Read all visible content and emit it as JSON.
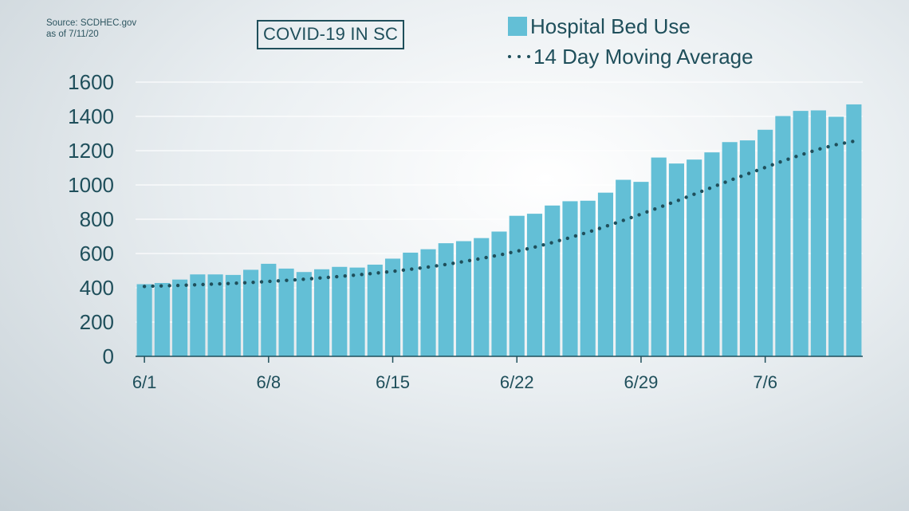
{
  "source": {
    "line1": "Source: SCDHEC.gov",
    "line2": "as of 7/11/20"
  },
  "title": "COVID-19 IN SC",
  "legend": {
    "bars_label": "Hospital Bed Use",
    "line_label": "14 Day Moving Average"
  },
  "colors": {
    "bar": "#63bfd6",
    "line": "#1f4f5b",
    "text": "#1f4f5b",
    "grid": "#ffffff"
  },
  "chart_data": {
    "type": "bar",
    "title": "COVID-19 IN SC",
    "ylim": [
      0,
      1600
    ],
    "yticks": [
      0,
      200,
      400,
      600,
      800,
      1000,
      1200,
      1400,
      1600
    ],
    "xtick_labels": [
      "6/1",
      "6/8",
      "6/15",
      "6/22",
      "6/29",
      "7/6"
    ],
    "xtick_index": [
      0,
      7,
      14,
      21,
      28,
      35
    ],
    "grid": true,
    "legend_position": "top-right",
    "x": [
      "6/1",
      "6/2",
      "6/3",
      "6/4",
      "6/5",
      "6/6",
      "6/7",
      "6/8",
      "6/9",
      "6/10",
      "6/11",
      "6/12",
      "6/13",
      "6/14",
      "6/15",
      "6/16",
      "6/17",
      "6/18",
      "6/19",
      "6/20",
      "6/21",
      "6/22",
      "6/23",
      "6/24",
      "6/25",
      "6/26",
      "6/27",
      "6/28",
      "6/29",
      "6/30",
      "7/1",
      "7/2",
      "7/3",
      "7/4",
      "7/5",
      "7/6",
      "7/7",
      "7/8",
      "7/9",
      "7/10",
      "7/11"
    ],
    "series": [
      {
        "name": "Hospital Bed Use",
        "type": "bar",
        "values": [
          421,
          428,
          448,
          478,
          478,
          475,
          505,
          540,
          512,
          492,
          508,
          522,
          518,
          535,
          570,
          605,
          625,
          660,
          672,
          690,
          728,
          820,
          832,
          880,
          905,
          908,
          955,
          1030,
          1018,
          1160,
          1125,
          1148,
          1190,
          1250,
          1260,
          1322,
          1402,
          1432,
          1435,
          1398,
          1470
        ]
      },
      {
        "name": "14 Day Moving Average",
        "type": "line",
        "style": "dotted",
        "values": [
          408,
          411,
          414,
          418,
          422,
          426,
          431,
          437,
          443,
          450,
          458,
          466,
          475,
          485,
          496,
          508,
          521,
          536,
          553,
          571,
          591,
          613,
          637,
          664,
          693,
          724,
          758,
          793,
          830,
          868,
          906,
          946,
          986,
          1026,
          1064,
          1102,
          1140,
          1175,
          1208,
          1235,
          1255
        ]
      }
    ]
  }
}
